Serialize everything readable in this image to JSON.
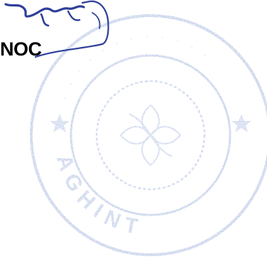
{
  "document": {
    "heading_fragment": "NOC"
  },
  "stamp": {
    "shape": "circular-seal",
    "ink_color": "#8fa6d6",
    "ring_text_fragment": "AGHINT"
  },
  "signature": {
    "ink_color": "#2f3f9a"
  }
}
